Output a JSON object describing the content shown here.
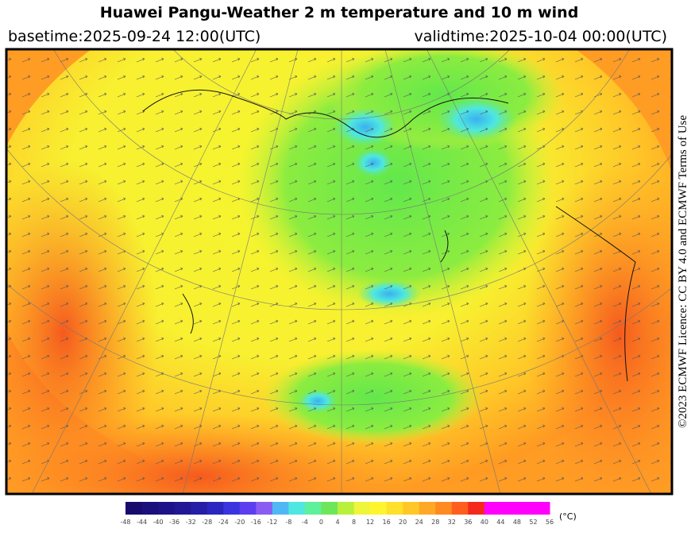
{
  "header": {
    "title": "Huawei Pangu-Weather  2 m temperature and 10 m wind",
    "basetime": "basetime:2025-09-24 12:00(UTC)",
    "validtime": "validtime:2025-10-04 00:00(UTC)"
  },
  "licence": "©2023 ECMWF Licence: CC BY 4.0 and ECMWF Terms of Use",
  "colorbar": {
    "ticks": [
      -48,
      -44,
      -40,
      -36,
      -32,
      -28,
      -24,
      -20,
      -16,
      -12,
      -8,
      -4,
      0,
      4,
      8,
      12,
      16,
      20,
      24,
      28,
      32,
      36,
      40,
      44,
      48,
      52,
      56
    ],
    "colors": [
      "#170c6e",
      "#1a0f7c",
      "#1d1389",
      "#211896",
      "#251ea6",
      "#2b26c0",
      "#3a34e0",
      "#5c3ef0",
      "#8a5cf2",
      "#4fb8f4",
      "#4fe8e0",
      "#5ef09a",
      "#6ee65a",
      "#b8f03c",
      "#eef53a",
      "#fff52e",
      "#ffe02a",
      "#ffc828",
      "#ffa826",
      "#ff8a22",
      "#ff5e1e",
      "#f5281c",
      "#ff00ff",
      "#ff00ff",
      "#ff00ff",
      "#ff00ff"
    ],
    "unit": "(°C)"
  }
}
